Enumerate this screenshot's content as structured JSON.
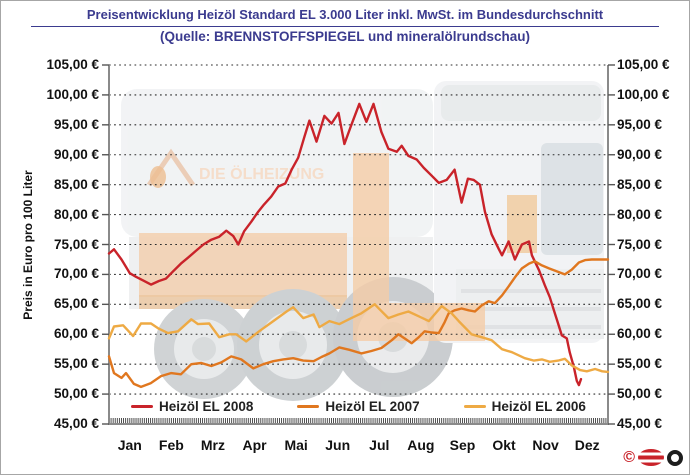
{
  "page": {
    "title": "Preisentwicklung Heizöl Standard EL 3.000 Liter inkl. MwSt. im Bundesdurchschnitt",
    "subtitle": "(Quelle: BRENNSTOFFSPIEGEL und mineralölrundschau)"
  },
  "watermark": {
    "logo_text": "DIE ÖLHEIZUNG"
  },
  "footer": {
    "copyright_symbol": "©"
  },
  "chart_data": {
    "type": "line",
    "title": "Preisentwicklung Heizöl Standard EL 3.000 Liter inkl. MwSt. im Bundesdurchschnitt",
    "source": "(Quelle: BRENNSTOFFSPIEGEL und mineralölrundschau)",
    "ylabel": "Preis in Euro pro 100 Liter",
    "ylim": [
      45,
      105
    ],
    "x_range": [
      0,
      12
    ],
    "grid": "horizontal-dotted",
    "legend_position": "bottom-inside",
    "categories": [
      "Jan",
      "Feb",
      "Mrz",
      "Apr",
      "Mai",
      "Jun",
      "Jul",
      "Aug",
      "Sep",
      "Okt",
      "Nov",
      "Dez"
    ],
    "yticks": [
      {
        "value": 105,
        "label": "105,00 €"
      },
      {
        "value": 100,
        "label": "100,00 €"
      },
      {
        "value": 95,
        "label": "95,00 €"
      },
      {
        "value": 90,
        "label": "90,00 €"
      },
      {
        "value": 85,
        "label": "85,00 €"
      },
      {
        "value": 80,
        "label": "80,00 €"
      },
      {
        "value": 75,
        "label": "75,00 €"
      },
      {
        "value": 70,
        "label": "70,00 €"
      },
      {
        "value": 65,
        "label": "65,00 €"
      },
      {
        "value": 60,
        "label": "60,00 €"
      },
      {
        "value": 55,
        "label": "55,00 €"
      },
      {
        "value": 50,
        "label": "50,00 €"
      },
      {
        "value": 45,
        "label": "45,00 €"
      }
    ],
    "series": [
      {
        "name": "Heizöl EL 2008",
        "color": "#c9232a",
        "points": [
          [
            0,
            73.5
          ],
          [
            0.12,
            74.2
          ],
          [
            0.3,
            72.5
          ],
          [
            0.5,
            70.2
          ],
          [
            0.65,
            69.6
          ],
          [
            0.82,
            69.0
          ],
          [
            1.01,
            68.3
          ],
          [
            1.2,
            68.9
          ],
          [
            1.37,
            69.3
          ],
          [
            1.54,
            70.5
          ],
          [
            1.73,
            71.8
          ],
          [
            1.9,
            72.8
          ],
          [
            2.1,
            74.0
          ],
          [
            2.27,
            75.0
          ],
          [
            2.46,
            75.8
          ],
          [
            2.65,
            76.3
          ],
          [
            2.82,
            77.3
          ],
          [
            2.99,
            76.4
          ],
          [
            3.11,
            75.0
          ],
          [
            3.25,
            77.2
          ],
          [
            3.42,
            78.8
          ],
          [
            3.59,
            80.5
          ],
          [
            3.73,
            81.7
          ],
          [
            3.9,
            83.0
          ],
          [
            4.07,
            84.7
          ],
          [
            4.24,
            85.2
          ],
          [
            4.39,
            87.5
          ],
          [
            4.55,
            89.5
          ],
          [
            4.7,
            93.0
          ],
          [
            4.82,
            95.7
          ],
          [
            4.99,
            92.2
          ],
          [
            5.18,
            96.5
          ],
          [
            5.35,
            95.2
          ],
          [
            5.52,
            97.0
          ],
          [
            5.66,
            91.8
          ],
          [
            5.83,
            95.0
          ],
          [
            6.02,
            98.5
          ],
          [
            6.19,
            95.5
          ],
          [
            6.36,
            98.5
          ],
          [
            6.55,
            93.8
          ],
          [
            6.72,
            91.0
          ],
          [
            6.92,
            90.5
          ],
          [
            7.04,
            91.5
          ],
          [
            7.2,
            89.8
          ],
          [
            7.4,
            89.2
          ],
          [
            7.57,
            87.8
          ],
          [
            7.76,
            86.5
          ],
          [
            7.93,
            85.3
          ],
          [
            8.12,
            85.8
          ],
          [
            8.31,
            87.5
          ],
          [
            8.48,
            82.0
          ],
          [
            8.63,
            86.0
          ],
          [
            8.77,
            85.8
          ],
          [
            8.92,
            85.0
          ],
          [
            9.04,
            80.5
          ],
          [
            9.2,
            76.7
          ],
          [
            9.37,
            74.3
          ],
          [
            9.45,
            73.2
          ],
          [
            9.61,
            75.5
          ],
          [
            9.76,
            72.5
          ],
          [
            9.93,
            75.0
          ],
          [
            10.1,
            75.5
          ],
          [
            10.17,
            73.2
          ],
          [
            10.34,
            70.7
          ],
          [
            10.48,
            68.2
          ],
          [
            10.6,
            66.2
          ],
          [
            10.7,
            64.0
          ],
          [
            10.8,
            61.8
          ],
          [
            10.89,
            59.8
          ],
          [
            11.01,
            59.3
          ],
          [
            11.08,
            57.0
          ],
          [
            11.18,
            54.5
          ],
          [
            11.25,
            52.2
          ],
          [
            11.3,
            51.5
          ],
          [
            11.35,
            52.5
          ]
        ]
      },
      {
        "name": "Heizöl EL 2007",
        "color": "#e0771f",
        "points": [
          [
            0,
            56.3
          ],
          [
            0.12,
            53.5
          ],
          [
            0.3,
            52.7
          ],
          [
            0.41,
            53.5
          ],
          [
            0.6,
            51.7
          ],
          [
            0.77,
            51.2
          ],
          [
            1.0,
            51.8
          ],
          [
            1.25,
            53.0
          ],
          [
            1.49,
            53.5
          ],
          [
            1.73,
            53.3
          ],
          [
            1.98,
            55.0
          ],
          [
            2.22,
            55.2
          ],
          [
            2.46,
            54.7
          ],
          [
            2.7,
            55.3
          ],
          [
            2.94,
            56.3
          ],
          [
            3.18,
            55.8
          ],
          [
            3.47,
            54.3
          ],
          [
            3.71,
            55.0
          ],
          [
            3.95,
            55.5
          ],
          [
            4.19,
            55.8
          ],
          [
            4.43,
            56.0
          ],
          [
            4.67,
            55.6
          ],
          [
            4.92,
            55.5
          ],
          [
            5.11,
            56.2
          ],
          [
            5.3,
            56.8
          ],
          [
            5.54,
            57.8
          ],
          [
            5.78,
            57.4
          ],
          [
            6.07,
            56.8
          ],
          [
            6.31,
            57.2
          ],
          [
            6.55,
            57.7
          ],
          [
            6.8,
            59.0
          ],
          [
            6.96,
            60.0
          ],
          [
            7.13,
            59.2
          ],
          [
            7.28,
            58.5
          ],
          [
            7.45,
            59.5
          ],
          [
            7.59,
            60.5
          ],
          [
            7.76,
            60.3
          ],
          [
            7.93,
            60.2
          ],
          [
            8.07,
            62.0
          ],
          [
            8.17,
            63.5
          ],
          [
            8.31,
            64.0
          ],
          [
            8.48,
            64.3
          ],
          [
            8.65,
            64.0
          ],
          [
            8.8,
            63.8
          ],
          [
            8.96,
            64.8
          ],
          [
            9.13,
            65.5
          ],
          [
            9.28,
            65.2
          ],
          [
            9.45,
            66.5
          ],
          [
            9.61,
            68.0
          ],
          [
            9.76,
            69.5
          ],
          [
            9.93,
            71.0
          ],
          [
            10.1,
            71.8
          ],
          [
            10.24,
            72.2
          ],
          [
            10.41,
            71.5
          ],
          [
            10.58,
            71.0
          ],
          [
            10.77,
            70.5
          ],
          [
            10.96,
            70.0
          ],
          [
            11.13,
            70.8
          ],
          [
            11.3,
            72.0
          ],
          [
            11.45,
            72.4
          ],
          [
            11.61,
            72.5
          ],
          [
            11.81,
            72.5
          ],
          [
            12,
            72.5
          ]
        ]
      },
      {
        "name": "Heizöl EL 2006",
        "color": "#eeaa44",
        "points": [
          [
            0,
            59.3
          ],
          [
            0.12,
            61.3
          ],
          [
            0.34,
            61.5
          ],
          [
            0.58,
            59.7
          ],
          [
            0.77,
            61.8
          ],
          [
            1.01,
            61.8
          ],
          [
            1.18,
            61.0
          ],
          [
            1.42,
            60.2
          ],
          [
            1.66,
            60.5
          ],
          [
            1.98,
            62.5
          ],
          [
            2.14,
            61.7
          ],
          [
            2.41,
            61.8
          ],
          [
            2.65,
            59.5
          ],
          [
            2.89,
            60.0
          ],
          [
            3.06,
            60.0
          ],
          [
            3.3,
            58.8
          ],
          [
            3.61,
            60.5
          ],
          [
            3.95,
            62.2
          ],
          [
            4.27,
            63.8
          ],
          [
            4.43,
            64.5
          ],
          [
            4.67,
            62.7
          ],
          [
            4.92,
            63.3
          ],
          [
            5.06,
            61.2
          ],
          [
            5.3,
            62.2
          ],
          [
            5.54,
            61.7
          ],
          [
            5.83,
            62.7
          ],
          [
            6.07,
            63.5
          ],
          [
            6.39,
            65.0
          ],
          [
            6.72,
            62.7
          ],
          [
            6.96,
            63.3
          ],
          [
            7.2,
            63.8
          ],
          [
            7.45,
            63.0
          ],
          [
            7.69,
            62.2
          ],
          [
            8.0,
            64.7
          ],
          [
            8.24,
            63.5
          ],
          [
            8.41,
            62.2
          ],
          [
            8.72,
            60.0
          ],
          [
            8.96,
            59.5
          ],
          [
            9.2,
            59.0
          ],
          [
            9.45,
            57.5
          ],
          [
            9.69,
            57.0
          ],
          [
            10.0,
            56.0
          ],
          [
            10.22,
            55.6
          ],
          [
            10.41,
            55.8
          ],
          [
            10.6,
            55.4
          ],
          [
            10.8,
            55.6
          ],
          [
            10.96,
            55.9
          ],
          [
            11.13,
            54.8
          ],
          [
            11.33,
            54.0
          ],
          [
            11.49,
            53.8
          ],
          [
            11.69,
            54.2
          ],
          [
            11.86,
            53.8
          ],
          [
            12,
            53.7
          ]
        ]
      }
    ]
  }
}
